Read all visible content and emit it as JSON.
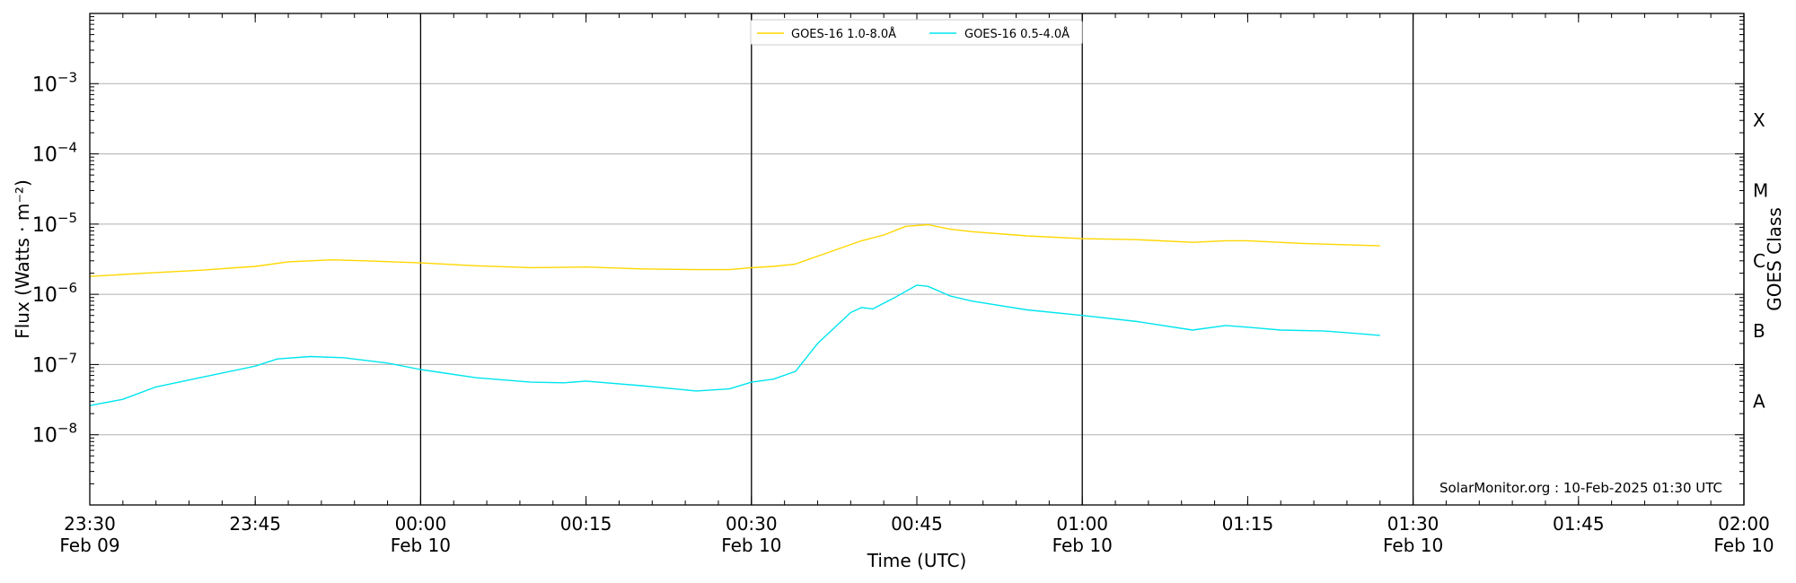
{
  "chart_data": {
    "type": "line",
    "title": "",
    "xlabel": "Time (UTC)",
    "ylabel": "Flux (Watts · m⁻²)",
    "y2label": "GOES Class",
    "yscale": "log",
    "ylim": [
      1e-09,
      0.01
    ],
    "xlim": [
      "2025-02-09 23:30",
      "2025-02-10 02:00"
    ],
    "y_ticks": [
      {
        "value": 1e-08,
        "base": "10",
        "exp": "−8"
      },
      {
        "value": 1e-07,
        "base": "10",
        "exp": "−7"
      },
      {
        "value": 1e-06,
        "base": "10",
        "exp": "−6"
      },
      {
        "value": 1e-05,
        "base": "10",
        "exp": "−5"
      },
      {
        "value": 0.0001,
        "base": "10",
        "exp": "−4"
      },
      {
        "value": 0.001,
        "base": "10",
        "exp": "−3"
      }
    ],
    "x_ticks": [
      {
        "time": "2025-02-09 23:30",
        "label": "23:30",
        "sublabel": "Feb 09"
      },
      {
        "time": "2025-02-09 23:45",
        "label": "23:45",
        "sublabel": ""
      },
      {
        "time": "2025-02-10 00:00",
        "label": "00:00",
        "sublabel": "Feb 10"
      },
      {
        "time": "2025-02-10 00:15",
        "label": "00:15",
        "sublabel": ""
      },
      {
        "time": "2025-02-10 00:30",
        "label": "00:30",
        "sublabel": "Feb 10"
      },
      {
        "time": "2025-02-10 00:45",
        "label": "00:45",
        "sublabel": ""
      },
      {
        "time": "2025-02-10 01:00",
        "label": "01:00",
        "sublabel": "Feb 10"
      },
      {
        "time": "2025-02-10 01:15",
        "label": "01:15",
        "sublabel": ""
      },
      {
        "time": "2025-02-10 01:30",
        "label": "01:30",
        "sublabel": "Feb 10"
      },
      {
        "time": "2025-02-10 01:45",
        "label": "01:45",
        "sublabel": ""
      },
      {
        "time": "2025-02-10 02:00",
        "label": "02:00",
        "sublabel": "Feb 10"
      }
    ],
    "vertical_lines": [
      "2025-02-10 00:00",
      "2025-02-10 00:30",
      "2025-02-10 01:00",
      "2025-02-10 01:30",
      "2025-02-10 02:00"
    ],
    "goes_classes": [
      {
        "label": "A",
        "value": 3e-08
      },
      {
        "label": "B",
        "value": 3e-07
      },
      {
        "label": "C",
        "value": 3e-06
      },
      {
        "label": "M",
        "value": 3e-05
      },
      {
        "label": "X",
        "value": 0.0003
      }
    ],
    "grid": "horizontal",
    "legend_position": "top-center",
    "annotation": "SolarMonitor.org : 10-Feb-2025 01:30 UTC",
    "series": [
      {
        "name": "GOES-16 1.0-8.0Å",
        "color": "#ffd700",
        "x": [
          "2025-02-09 23:30",
          "2025-02-09 23:35",
          "2025-02-09 23:40",
          "2025-02-09 23:45",
          "2025-02-09 23:48",
          "2025-02-09 23:52",
          "2025-02-09 23:55",
          "2025-02-10 00:00",
          "2025-02-10 00:05",
          "2025-02-10 00:10",
          "2025-02-10 00:15",
          "2025-02-10 00:20",
          "2025-02-10 00:25",
          "2025-02-10 00:28",
          "2025-02-10 00:30",
          "2025-02-10 00:32",
          "2025-02-10 00:34",
          "2025-02-10 00:36",
          "2025-02-10 00:38",
          "2025-02-10 00:40",
          "2025-02-10 00:42",
          "2025-02-10 00:44",
          "2025-02-10 00:46",
          "2025-02-10 00:48",
          "2025-02-10 00:50",
          "2025-02-10 00:55",
          "2025-02-10 01:00",
          "2025-02-10 01:05",
          "2025-02-10 01:10",
          "2025-02-10 01:13",
          "2025-02-10 01:15",
          "2025-02-10 01:20",
          "2025-02-10 01:27"
        ],
        "values": [
          1.8e-06,
          2e-06,
          2.2e-06,
          2.5e-06,
          2.9e-06,
          3.1e-06,
          3e-06,
          2.8e-06,
          2.55e-06,
          2.4e-06,
          2.45e-06,
          2.3e-06,
          2.25e-06,
          2.25e-06,
          2.4e-06,
          2.5e-06,
          2.7e-06,
          3.5e-06,
          4.5e-06,
          5.8e-06,
          7e-06,
          9.3e-06,
          9.8e-06,
          8.5e-06,
          7.8e-06,
          6.8e-06,
          6.2e-06,
          6e-06,
          5.5e-06,
          5.8e-06,
          5.8e-06,
          5.3e-06,
          4.9e-06
        ]
      },
      {
        "name": "GOES-16 0.5-4.0Å",
        "color": "#00e5ee",
        "x": [
          "2025-02-09 23:30",
          "2025-02-09 23:33",
          "2025-02-09 23:36",
          "2025-02-09 23:40",
          "2025-02-09 23:45",
          "2025-02-09 23:47",
          "2025-02-09 23:50",
          "2025-02-09 23:53",
          "2025-02-09 23:57",
          "2025-02-10 00:00",
          "2025-02-10 00:05",
          "2025-02-10 00:10",
          "2025-02-10 00:13",
          "2025-02-10 00:15",
          "2025-02-10 00:20",
          "2025-02-10 00:25",
          "2025-02-10 00:28",
          "2025-02-10 00:30",
          "2025-02-10 00:32",
          "2025-02-10 00:34",
          "2025-02-10 00:36",
          "2025-02-10 00:39",
          "2025-02-10 00:40",
          "2025-02-10 00:41",
          "2025-02-10 00:43",
          "2025-02-10 00:45",
          "2025-02-10 00:46",
          "2025-02-10 00:48",
          "2025-02-10 00:50",
          "2025-02-10 00:55",
          "2025-02-10 01:00",
          "2025-02-10 01:05",
          "2025-02-10 01:10",
          "2025-02-10 01:13",
          "2025-02-10 01:15",
          "2025-02-10 01:18",
          "2025-02-10 01:22",
          "2025-02-10 01:27"
        ],
        "values": [
          2.6e-08,
          3.2e-08,
          4.8e-08,
          6.5e-08,
          9.5e-08,
          1.2e-07,
          1.3e-07,
          1.25e-07,
          1.05e-07,
          8.5e-08,
          6.5e-08,
          5.6e-08,
          5.5e-08,
          5.8e-08,
          5e-08,
          4.2e-08,
          4.5e-08,
          5.6e-08,
          6.2e-08,
          8e-08,
          2e-07,
          5.5e-07,
          6.5e-07,
          6.2e-07,
          9e-07,
          1.35e-06,
          1.3e-06,
          9.5e-07,
          8e-07,
          6e-07,
          5e-07,
          4.1e-07,
          3.1e-07,
          3.6e-07,
          3.4e-07,
          3.1e-07,
          3e-07,
          2.6e-07
        ]
      }
    ]
  }
}
